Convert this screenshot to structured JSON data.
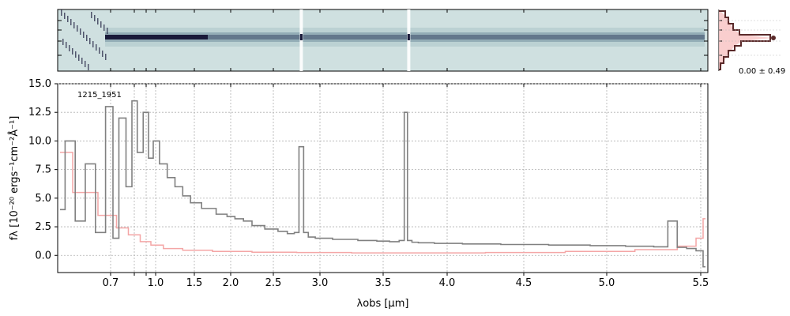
{
  "chart_data": {
    "type": "line",
    "spectrum_id": "1215_1951",
    "xlabel": "λobs [μm]",
    "ylabel": "fλ [10⁻²⁰ ergs⁻¹cm⁻²Å⁻¹]",
    "xscale": "reciprocal-like (custom spectral stretch)",
    "xlim": [
      0.6,
      5.52
    ],
    "ylim": [
      -1.5,
      15.0
    ],
    "x_ticks": [
      "0.7",
      "0.8",
      "0.9",
      "1.0",
      "1.5",
      "2.0",
      "2.5",
      "3.0",
      "3.5",
      "4.0",
      "4.5",
      "5.0",
      "5.5"
    ],
    "x_tick_labels": [
      "0.7",
      "1.0",
      "1.5",
      "2.0",
      "2.5",
      "3.0",
      "3.5",
      "4.0",
      "4.5",
      "5.0",
      "5.5"
    ],
    "y_ticks": [
      0.0,
      2.5,
      5.0,
      7.5,
      10.0,
      12.5,
      15.0
    ],
    "y_tick_labels": [
      "0.0",
      "2.5",
      "5.0",
      "7.5",
      "10.0",
      "12.5",
      "15.0"
    ],
    "grid": true,
    "series": [
      {
        "role": "flux",
        "color": "#808080",
        "x": [
          0.6,
          0.62,
          0.64,
          0.66,
          0.68,
          0.7,
          0.72,
          0.75,
          0.78,
          0.8,
          0.85,
          0.9,
          0.95,
          1.0,
          1.1,
          1.2,
          1.3,
          1.4,
          1.5,
          1.7,
          1.9,
          2.0,
          2.1,
          2.2,
          2.3,
          2.5,
          2.6,
          2.7,
          2.75,
          2.8,
          2.85,
          2.9,
          3.0,
          3.2,
          3.4,
          3.5,
          3.6,
          3.65,
          3.68,
          3.7,
          3.75,
          3.8,
          4.0,
          4.2,
          4.5,
          4.8,
          5.0,
          5.2,
          5.3,
          5.35,
          5.4,
          5.45,
          5.5,
          5.52
        ],
        "y": [
          4.0,
          10.0,
          3.0,
          8.0,
          2.0,
          13.0,
          1.5,
          12.0,
          6.0,
          13.5,
          9.0,
          12.5,
          8.5,
          10.0,
          8.0,
          6.8,
          6.0,
          5.2,
          4.6,
          4.1,
          3.6,
          3.4,
          3.2,
          3.0,
          2.6,
          2.3,
          2.1,
          1.9,
          2.0,
          9.5,
          2.0,
          1.6,
          1.5,
          1.4,
          1.3,
          1.25,
          1.2,
          1.3,
          12.5,
          1.3,
          1.15,
          1.1,
          1.05,
          1.0,
          0.95,
          0.9,
          0.85,
          0.8,
          0.75,
          3.0,
          0.7,
          0.6,
          0.4,
          -1.0
        ]
      },
      {
        "role": "error",
        "color": "#f4a6a6",
        "x": [
          0.6,
          0.65,
          0.7,
          0.75,
          0.8,
          0.9,
          1.0,
          1.2,
          1.5,
          2.0,
          2.5,
          3.0,
          3.5,
          4.0,
          4.5,
          5.0,
          5.3,
          5.45,
          5.5,
          5.52
        ],
        "y": [
          9.0,
          5.5,
          3.5,
          2.4,
          1.8,
          1.2,
          0.9,
          0.6,
          0.45,
          0.35,
          0.28,
          0.25,
          0.22,
          0.22,
          0.25,
          0.35,
          0.5,
          0.8,
          1.5,
          3.2
        ]
      }
    ],
    "histogram_annotation": "0.00 ± 0.49",
    "colors": {
      "flux": "#808080",
      "error": "#f4a6a6",
      "histogram_line": "#5a2a2a",
      "histogram_fill": "#f8c6c6",
      "spectrum2d_bg": "#cfe0e0",
      "spectrum2d_trace": "#1a1a3a"
    }
  }
}
